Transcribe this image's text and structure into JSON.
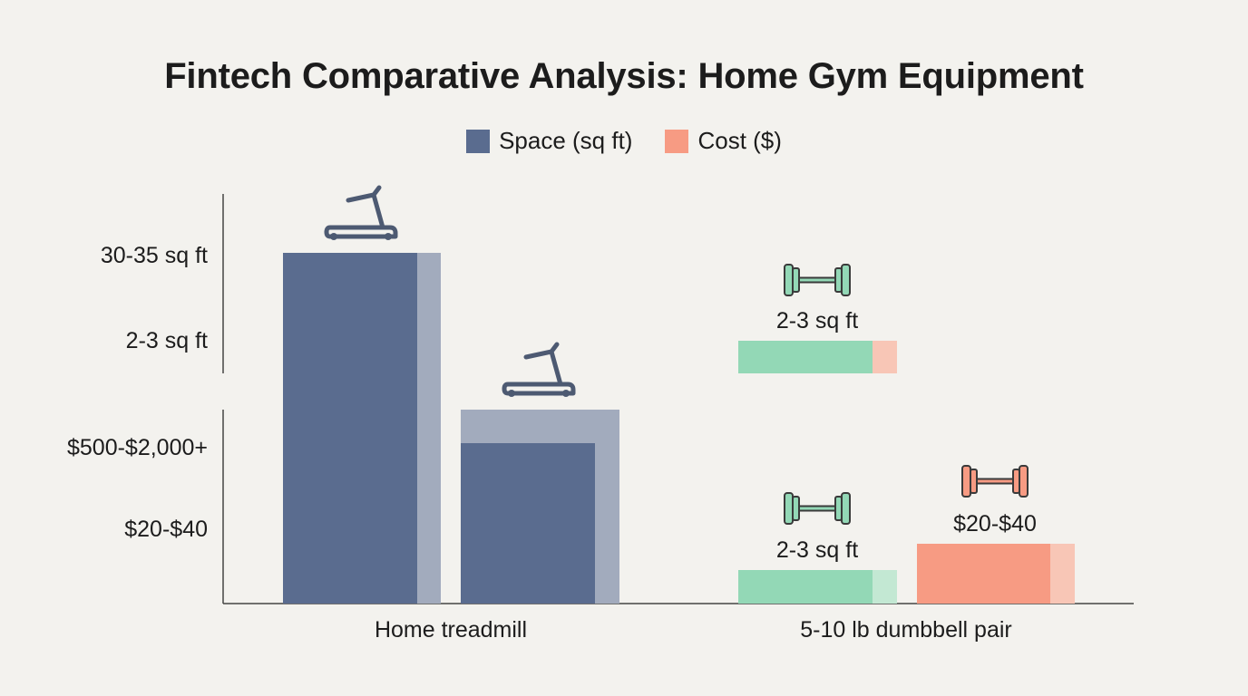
{
  "title": "Fintech Comparative Analysis: Home Gym Equipment",
  "legend": [
    {
      "label": "Space (sq ft)",
      "color": "#5a6c8f"
    },
    {
      "label": "Cost ($)",
      "color": "#f79b83"
    }
  ],
  "chart_data": {
    "type": "bar",
    "title": "Fintech Comparative Analysis: Home Gym Equipment",
    "categories": [
      "Home treadmill",
      "5-10 lb dumbbell pair"
    ],
    "series": [
      {
        "name": "Space (sq ft)",
        "labels": [
          "30-35 sq ft",
          "2-3 sq ft"
        ]
      },
      {
        "name": "Cost ($)",
        "labels": [
          "$500-$2,000+",
          "$20-$40"
        ]
      }
    ],
    "y_tick_labels": [
      "30-35 sq ft",
      "2-3 sq ft",
      "$500-$2,000+",
      "$20-$40"
    ],
    "data_labels": [
      "2-3 sq ft",
      "2-3 sq ft",
      "$20-$40"
    ],
    "icons": [
      "treadmill-icon",
      "dumbbell-icon"
    ],
    "colors": {
      "space": "#5a6c8f",
      "space_light": "#a2abbd",
      "dumbbell_green": "#93d8b6",
      "dumbbell_green_light": "#c3e8d3",
      "cost": "#f79b83",
      "cost_light": "#f8c6b6",
      "axis": "#444444"
    },
    "grid": false,
    "legend_position": "top-center"
  }
}
